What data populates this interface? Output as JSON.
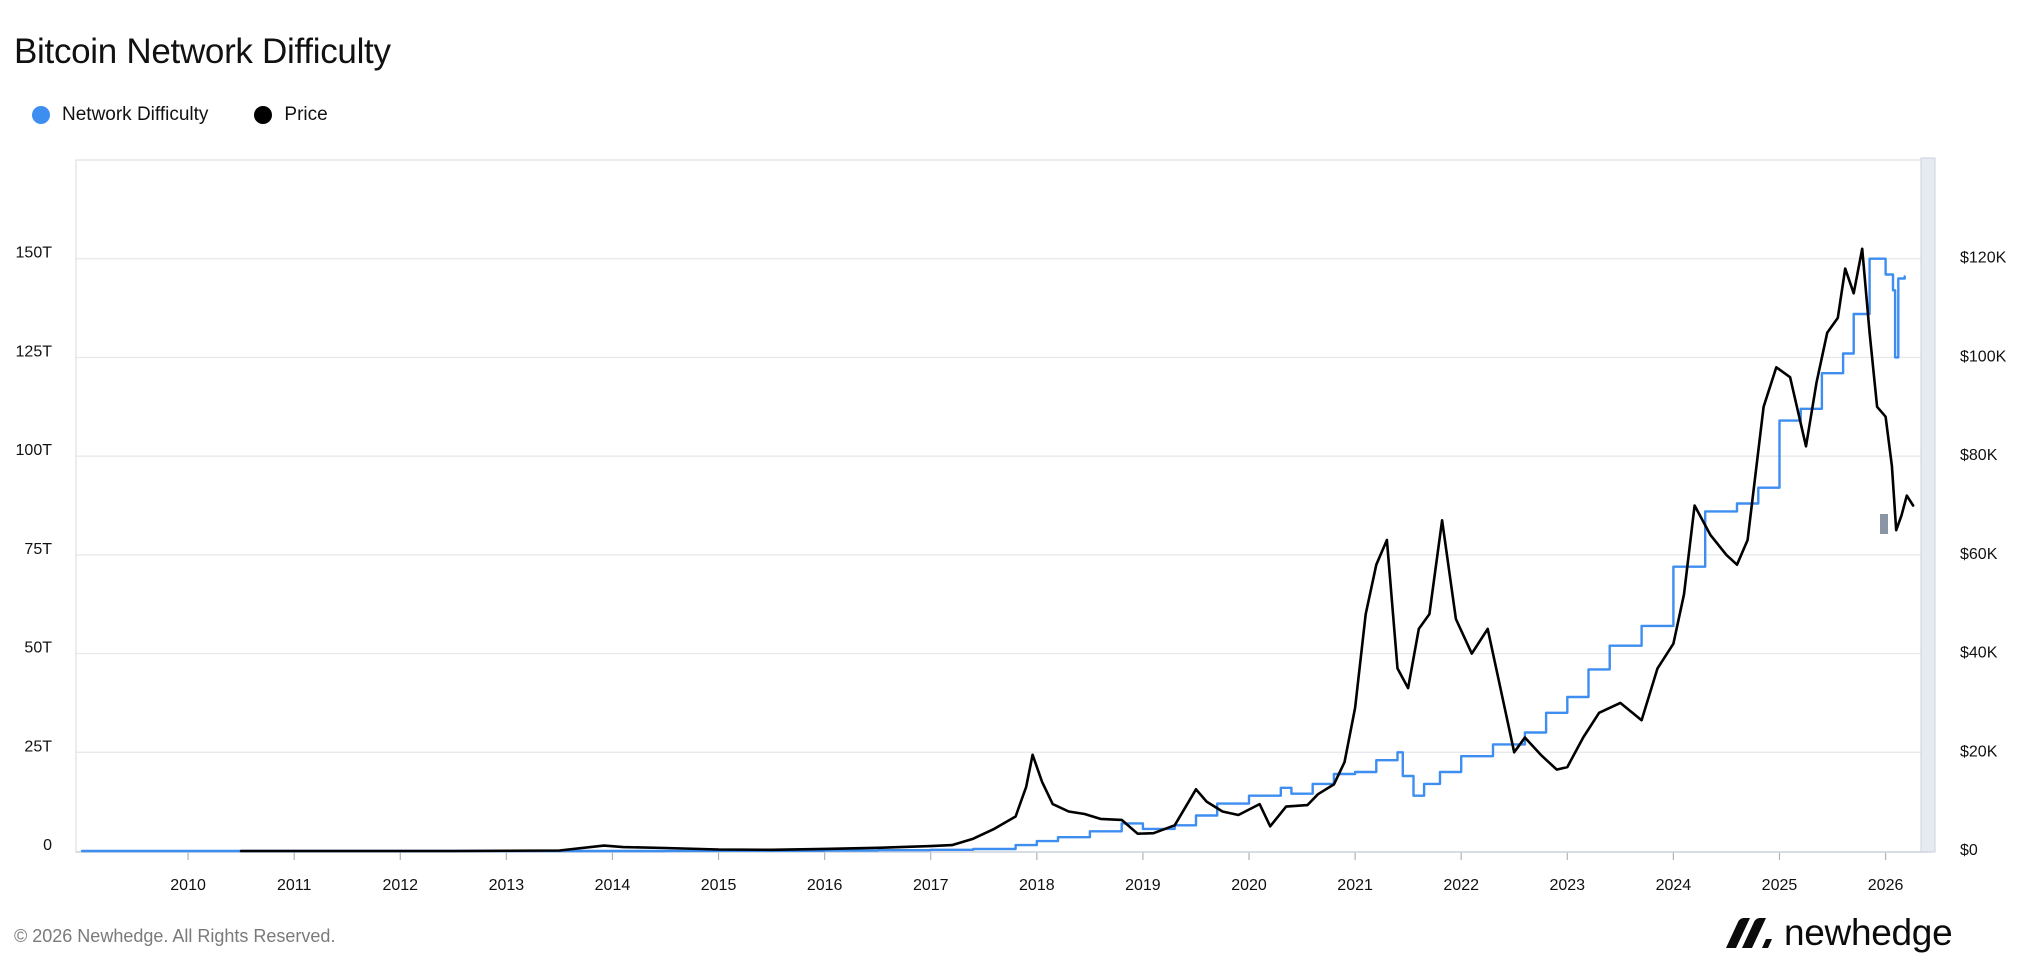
{
  "title": "Bitcoin Network Difficulty",
  "legend": [
    {
      "label": "Network Difficulty",
      "color": "#3d8ef0"
    },
    {
      "label": "Price",
      "color": "#000000"
    }
  ],
  "footer": {
    "copyright": "© 2026 Newhedge. All Rights Reserved.",
    "brand": "newhedge"
  },
  "chart_data": {
    "type": "line",
    "title": "Bitcoin Network Difficulty",
    "x_axis": {
      "range": [
        2009.0,
        2026.4
      ],
      "ticks": [
        "2010",
        "2011",
        "2012",
        "2013",
        "2014",
        "2015",
        "2016",
        "2017",
        "2018",
        "2019",
        "2020",
        "2021",
        "2022",
        "2023",
        "2024",
        "2025",
        "2026"
      ]
    },
    "y_axis_left": {
      "range": [
        0,
        175
      ],
      "unit": "T",
      "ticks": [
        "0",
        "25T",
        "50T",
        "75T",
        "100T",
        "125T",
        "150T"
      ]
    },
    "y_axis_right": {
      "range": [
        0,
        140000
      ],
      "ticks": [
        "$0",
        "$20K",
        "$40K",
        "$60K",
        "$80K",
        "$100K",
        "$120K"
      ]
    },
    "grid": true,
    "legend_position": "top-left",
    "series": [
      {
        "name": "Network Difficulty",
        "axis": "left",
        "color": "#3d8ef0",
        "step": true,
        "points": [
          [
            2009.0,
            0
          ],
          [
            2013.0,
            0.01
          ],
          [
            2014.0,
            0.01
          ],
          [
            2014.5,
            0.02
          ],
          [
            2015.0,
            0.04
          ],
          [
            2016.0,
            0.1
          ],
          [
            2016.5,
            0.2
          ],
          [
            2017.0,
            0.3
          ],
          [
            2017.4,
            0.5
          ],
          [
            2017.8,
            1.5
          ],
          [
            2018.0,
            2.5
          ],
          [
            2018.2,
            3.5
          ],
          [
            2018.5,
            5.0
          ],
          [
            2018.8,
            7.0
          ],
          [
            2019.0,
            5.6
          ],
          [
            2019.3,
            6.5
          ],
          [
            2019.5,
            9.0
          ],
          [
            2019.7,
            12.0
          ],
          [
            2020.0,
            14.0
          ],
          [
            2020.3,
            16.0
          ],
          [
            2020.4,
            14.5
          ],
          [
            2020.6,
            17.0
          ],
          [
            2020.8,
            19.5
          ],
          [
            2021.0,
            20.0
          ],
          [
            2021.2,
            23.0
          ],
          [
            2021.4,
            25.0
          ],
          [
            2021.45,
            19.0
          ],
          [
            2021.55,
            14.0
          ],
          [
            2021.65,
            17.0
          ],
          [
            2021.8,
            20.0
          ],
          [
            2022.0,
            24.0
          ],
          [
            2022.3,
            27.0
          ],
          [
            2022.6,
            30.0
          ],
          [
            2022.8,
            35.0
          ],
          [
            2023.0,
            39.0
          ],
          [
            2023.2,
            46.0
          ],
          [
            2023.4,
            52.0
          ],
          [
            2023.7,
            57.0
          ],
          [
            2024.0,
            72.0
          ],
          [
            2024.3,
            86.0
          ],
          [
            2024.6,
            88.0
          ],
          [
            2024.8,
            92.0
          ],
          [
            2025.0,
            109.0
          ],
          [
            2025.2,
            112.0
          ],
          [
            2025.4,
            121.0
          ],
          [
            2025.6,
            126.0
          ],
          [
            2025.7,
            136.0
          ],
          [
            2025.85,
            150.0
          ],
          [
            2026.0,
            146.0
          ],
          [
            2026.07,
            142.0
          ],
          [
            2026.09,
            125.0
          ],
          [
            2026.12,
            145.0
          ],
          [
            2026.18,
            145.5
          ]
        ]
      },
      {
        "name": "Price",
        "axis": "right",
        "color": "#000000",
        "step": false,
        "points": [
          [
            2010.5,
            0.06
          ],
          [
            2011.5,
            10
          ],
          [
            2012.5,
            10
          ],
          [
            2013.5,
            100
          ],
          [
            2013.92,
            1100
          ],
          [
            2014.1,
            800
          ],
          [
            2014.5,
            600
          ],
          [
            2015.0,
            300
          ],
          [
            2015.5,
            250
          ],
          [
            2016.0,
            430
          ],
          [
            2016.5,
            650
          ],
          [
            2017.0,
            1000
          ],
          [
            2017.2,
            1200
          ],
          [
            2017.4,
            2500
          ],
          [
            2017.6,
            4500
          ],
          [
            2017.8,
            7000
          ],
          [
            2017.9,
            13000
          ],
          [
            2017.96,
            19500
          ],
          [
            2018.05,
            14000
          ],
          [
            2018.15,
            9500
          ],
          [
            2018.3,
            8000
          ],
          [
            2018.45,
            7500
          ],
          [
            2018.6,
            6500
          ],
          [
            2018.8,
            6300
          ],
          [
            2018.95,
            3500
          ],
          [
            2019.1,
            3600
          ],
          [
            2019.3,
            5200
          ],
          [
            2019.5,
            12500
          ],
          [
            2019.6,
            10000
          ],
          [
            2019.75,
            8000
          ],
          [
            2019.9,
            7300
          ],
          [
            2020.1,
            9500
          ],
          [
            2020.2,
            5000
          ],
          [
            2020.35,
            9000
          ],
          [
            2020.55,
            9300
          ],
          [
            2020.65,
            11500
          ],
          [
            2020.8,
            13500
          ],
          [
            2020.9,
            18000
          ],
          [
            2021.0,
            29000
          ],
          [
            2021.1,
            48000
          ],
          [
            2021.2,
            58000
          ],
          [
            2021.3,
            63000
          ],
          [
            2021.4,
            37000
          ],
          [
            2021.5,
            33000
          ],
          [
            2021.6,
            45000
          ],
          [
            2021.7,
            48000
          ],
          [
            2021.82,
            67000
          ],
          [
            2021.95,
            47000
          ],
          [
            2022.1,
            40000
          ],
          [
            2022.25,
            45000
          ],
          [
            2022.4,
            30000
          ],
          [
            2022.5,
            20000
          ],
          [
            2022.6,
            23000
          ],
          [
            2022.75,
            19500
          ],
          [
            2022.9,
            16500
          ],
          [
            2023.0,
            17000
          ],
          [
            2023.15,
            23000
          ],
          [
            2023.3,
            28000
          ],
          [
            2023.5,
            30000
          ],
          [
            2023.7,
            26500
          ],
          [
            2023.85,
            37000
          ],
          [
            2024.0,
            42000
          ],
          [
            2024.1,
            52000
          ],
          [
            2024.2,
            70000
          ],
          [
            2024.35,
            64000
          ],
          [
            2024.5,
            60000
          ],
          [
            2024.6,
            58000
          ],
          [
            2024.7,
            63000
          ],
          [
            2024.85,
            90000
          ],
          [
            2024.97,
            98000
          ],
          [
            2025.1,
            96000
          ],
          [
            2025.25,
            82000
          ],
          [
            2025.35,
            95000
          ],
          [
            2025.45,
            105000
          ],
          [
            2025.55,
            108000
          ],
          [
            2025.62,
            118000
          ],
          [
            2025.7,
            113000
          ],
          [
            2025.78,
            122000
          ],
          [
            2025.85,
            105000
          ],
          [
            2025.92,
            90000
          ],
          [
            2026.0,
            88000
          ],
          [
            2026.06,
            78000
          ],
          [
            2026.1,
            65000
          ],
          [
            2026.15,
            68000
          ],
          [
            2026.2,
            72000
          ],
          [
            2026.26,
            70000
          ]
        ]
      }
    ]
  }
}
